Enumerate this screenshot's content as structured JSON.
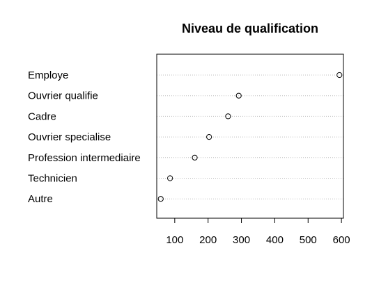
{
  "chart_data": {
    "type": "scatter",
    "subtype": "dotchart",
    "title": "Niveau de qualification",
    "xlabel": "",
    "ylabel": "",
    "categories": [
      "Employe",
      "Ouvrier qualifie",
      "Cadre",
      "Ouvrier specialise",
      "Profession intermediaire",
      "Technicien",
      "Autre"
    ],
    "values": [
      594,
      292,
      260,
      203,
      160,
      86,
      58
    ],
    "xlim": [
      46,
      606
    ],
    "xticks": [
      100,
      200,
      300,
      400,
      500,
      600
    ],
    "xtick_labels": [
      "100",
      "200",
      "300",
      "400",
      "500",
      "600"
    ],
    "grid": true,
    "legend": "none",
    "colors": {
      "point": "#000000",
      "gridline": "#bebebe",
      "frame": "#000000",
      "text": "#000000"
    }
  }
}
